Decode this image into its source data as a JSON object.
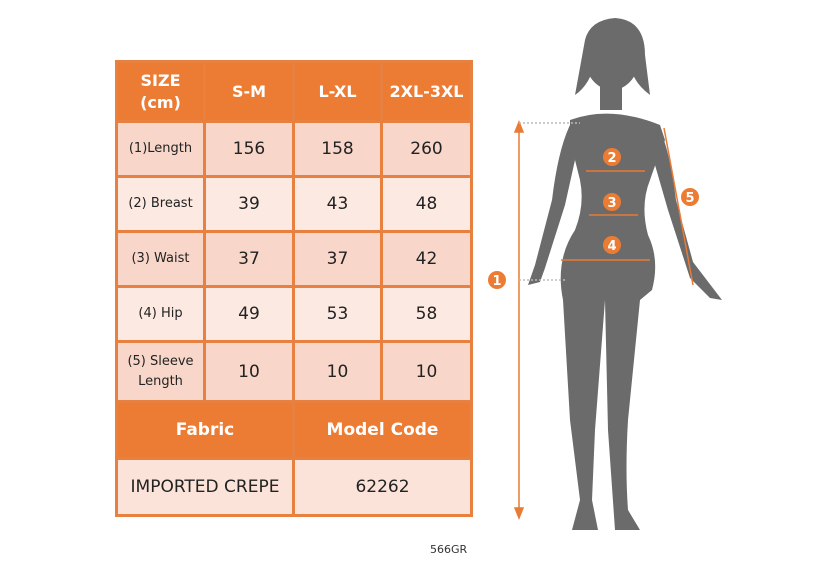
{
  "table": {
    "header": [
      "SIZE",
      "(cm)",
      "S-M",
      "L-XL",
      "2XL-3XL"
    ],
    "rows": [
      {
        "label": "(1)Length",
        "values": [
          "156",
          "158",
          "260"
        ]
      },
      {
        "label": "(2) Breast",
        "values": [
          "39",
          "43",
          "48"
        ]
      },
      {
        "label": "(3) Waist",
        "values": [
          "37",
          "37",
          "42"
        ]
      },
      {
        "label": "(4) Hip",
        "values": [
          "49",
          "53",
          "58"
        ]
      },
      {
        "label_line1": "(5) Sleeve",
        "label_line2": "Length",
        "values": [
          "10",
          "10",
          "10"
        ]
      }
    ],
    "fabric_header": "Fabric",
    "model_code_header": "Model Code",
    "fabric": "IMPORTED CREPE",
    "model_code": "62262"
  },
  "product_code": "566GR",
  "figure": {
    "markers": [
      "1",
      "2",
      "3",
      "4",
      "5"
    ]
  },
  "colors": {
    "accent": "#ec7c33",
    "row_dark": "#f8d7ca",
    "row_light": "#fce9e2",
    "silhouette": "#6b6b6b"
  }
}
